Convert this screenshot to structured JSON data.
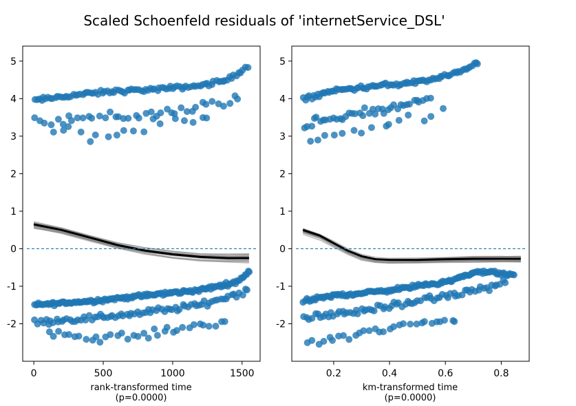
{
  "figure": {
    "title": "Scaled Schoenfeld residuals of 'internetService_DSL'",
    "point_color": "#1f77b4",
    "smooth_color": "#000000",
    "bootstrap_color": "#808080"
  },
  "chart_data": [
    {
      "type": "scatter",
      "xlabel": "rank-transformed time",
      "xlabel_sub": "(p=0.0000)",
      "xlim": [
        -80,
        1630
      ],
      "ylim": [
        -3.0,
        5.4
      ],
      "xticks": [
        0,
        500,
        1000,
        1500
      ],
      "xtick_labels": [
        "0",
        "500",
        "1000",
        "1500"
      ],
      "yticks": [
        5,
        4,
        3,
        2,
        1,
        0,
        -1,
        -2
      ],
      "ytick_labels": [
        "5",
        "4",
        "3",
        "2",
        "1",
        "0",
        "-1",
        "-2"
      ],
      "reference_line": 0,
      "bands": [
        {
          "name": "upper-main",
          "x": [
            0,
            300,
            600,
            900,
            1200,
            1400,
            1550
          ],
          "y": [
            3.95,
            4.1,
            4.2,
            4.25,
            4.35,
            4.5,
            4.9
          ],
          "spread": 0.08,
          "n": 95
        },
        {
          "name": "upper-lower",
          "x": [
            0,
            400,
            800,
            1200,
            1500
          ],
          "y": [
            3.4,
            3.5,
            3.55,
            3.8,
            4.0
          ],
          "spread": 0.2,
          "n": 40
        },
        {
          "name": "upper-scatter",
          "x": [
            100,
            400,
            700,
            1000,
            1300
          ],
          "y": [
            3.2,
            3.0,
            3.1,
            3.4,
            3.4
          ],
          "spread": 0.25,
          "n": 18
        },
        {
          "name": "lower-main",
          "x": [
            0,
            400,
            800,
            1200,
            1450,
            1560
          ],
          "y": [
            -1.5,
            -1.4,
            -1.25,
            -1.1,
            -0.9,
            -0.6
          ],
          "spread": 0.07,
          "n": 150
        },
        {
          "name": "lower-mid",
          "x": [
            0,
            400,
            800,
            1200,
            1550
          ],
          "y": [
            -1.95,
            -1.85,
            -1.7,
            -1.5,
            -1.1
          ],
          "spread": 0.12,
          "n": 80
        },
        {
          "name": "lower-bottom",
          "x": [
            100,
            400,
            800,
            1100,
            1400
          ],
          "y": [
            -2.2,
            -2.4,
            -2.3,
            -2.1,
            -1.9
          ],
          "spread": 0.15,
          "n": 35
        }
      ],
      "smooth": {
        "x": [
          0,
          200,
          400,
          600,
          800,
          1000,
          1200,
          1400,
          1550
        ],
        "y": [
          0.65,
          0.5,
          0.3,
          0.1,
          -0.05,
          -0.15,
          -0.22,
          -0.25,
          -0.25
        ]
      },
      "bootstrap_count": 14,
      "bootstrap_jitter": 0.18
    },
    {
      "type": "scatter",
      "xlabel": "km-transformed time",
      "xlabel_sub": "(p=0.0000)",
      "xlim": [
        0.05,
        0.9
      ],
      "ylim": [
        -3.0,
        5.4
      ],
      "xticks": [
        0.2,
        0.4,
        0.6,
        0.8
      ],
      "xtick_labels": [
        "0.2",
        "0.4",
        "0.6",
        "0.8"
      ],
      "yticks": [
        5,
        4,
        3,
        2,
        1,
        0,
        -1,
        -2
      ],
      "ytick_labels": [
        "5",
        "4",
        "3",
        "2",
        "1",
        "0",
        "-1",
        "-2"
      ],
      "reference_line": 0,
      "bands": [
        {
          "name": "upper-main",
          "x": [
            0.09,
            0.2,
            0.3,
            0.45,
            0.55,
            0.65,
            0.72
          ],
          "y": [
            4.0,
            4.2,
            4.3,
            4.4,
            4.5,
            4.7,
            5.0
          ],
          "spread": 0.08,
          "n": 90
        },
        {
          "name": "upper-lower",
          "x": [
            0.09,
            0.2,
            0.3,
            0.45,
            0.55
          ],
          "y": [
            3.3,
            3.45,
            3.6,
            3.8,
            4.0
          ],
          "spread": 0.2,
          "n": 40
        },
        {
          "name": "upper-scatter",
          "x": [
            0.09,
            0.15,
            0.25,
            0.4,
            0.6
          ],
          "y": [
            2.8,
            3.0,
            3.1,
            3.3,
            3.6
          ],
          "spread": 0.2,
          "n": 15
        },
        {
          "name": "lower-main",
          "x": [
            0.09,
            0.2,
            0.35,
            0.5,
            0.62,
            0.72,
            0.85
          ],
          "y": [
            -1.4,
            -1.25,
            -1.15,
            -1.0,
            -0.85,
            -0.6,
            -0.7
          ],
          "spread": 0.07,
          "n": 140
        },
        {
          "name": "lower-mid",
          "x": [
            0.09,
            0.2,
            0.35,
            0.5,
            0.65,
            0.82
          ],
          "y": [
            -1.85,
            -1.75,
            -1.6,
            -1.4,
            -1.2,
            -0.9
          ],
          "spread": 0.12,
          "n": 75
        },
        {
          "name": "lower-bottom",
          "x": [
            0.1,
            0.2,
            0.35,
            0.5,
            0.65
          ],
          "y": [
            -2.5,
            -2.4,
            -2.2,
            -2.0,
            -1.9
          ],
          "spread": 0.15,
          "n": 30
        }
      ],
      "smooth": {
        "x": [
          0.09,
          0.15,
          0.2,
          0.25,
          0.3,
          0.35,
          0.4,
          0.5,
          0.6,
          0.7,
          0.8,
          0.87
        ],
        "y": [
          0.5,
          0.35,
          0.15,
          -0.05,
          -0.2,
          -0.28,
          -0.3,
          -0.3,
          -0.28,
          -0.27,
          -0.27,
          -0.27
        ]
      },
      "bootstrap_count": 14,
      "bootstrap_jitter": 0.15
    }
  ]
}
